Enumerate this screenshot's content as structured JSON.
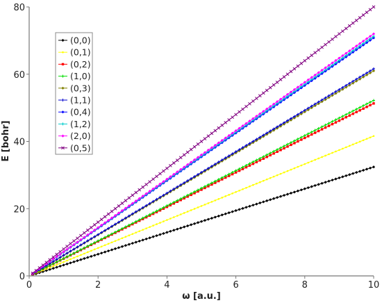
{
  "chart_data": {
    "type": "line",
    "xlabel": "ω [a.u.]",
    "ylabel": "E [bohr]",
    "xlim": [
      0,
      10
    ],
    "ylim": [
      0,
      80
    ],
    "x_ticks": [
      0,
      2,
      4,
      6,
      8,
      10
    ],
    "y_ticks": [
      0,
      20,
      40,
      60,
      80
    ],
    "grid": false,
    "legend_position": "top-left",
    "x_start": 0.1,
    "x_end": 10,
    "series": [
      {
        "name": "(0,0)",
        "color": "#000000",
        "marker": "diamond",
        "y_start": 0.3,
        "y_end": 32.4
      },
      {
        "name": "(0,1)",
        "color": "#ffff00",
        "marker": "dot",
        "y_start": 0.4,
        "y_end": 41.6
      },
      {
        "name": "(0,2)",
        "color": "#ff0000",
        "marker": "square",
        "y_start": 0.5,
        "y_end": 51.3
      },
      {
        "name": "(1,0)",
        "color": "#00dd00",
        "marker": "plus",
        "y_start": 0.5,
        "y_end": 52.2
      },
      {
        "name": "(0,3)",
        "color": "#808000",
        "marker": "diamond",
        "y_start": 0.6,
        "y_end": 61.0
      },
      {
        "name": "(1,1)",
        "color": "#0000cd",
        "marker": "plus",
        "y_start": 0.6,
        "y_end": 61.6
      },
      {
        "name": "(0,4)",
        "color": "#0000ff",
        "marker": "diamond",
        "y_start": 0.7,
        "y_end": 70.8
      },
      {
        "name": "(1,2)",
        "color": "#00cccc",
        "marker": "plus",
        "y_start": 0.7,
        "y_end": 71.3
      },
      {
        "name": "(2,0)",
        "color": "#ff00ff",
        "marker": "diamond",
        "y_start": 0.7,
        "y_end": 72.0
      },
      {
        "name": "(0,5)",
        "color": "#800080",
        "marker": "cross",
        "y_start": 0.8,
        "y_end": 80.0
      }
    ]
  }
}
